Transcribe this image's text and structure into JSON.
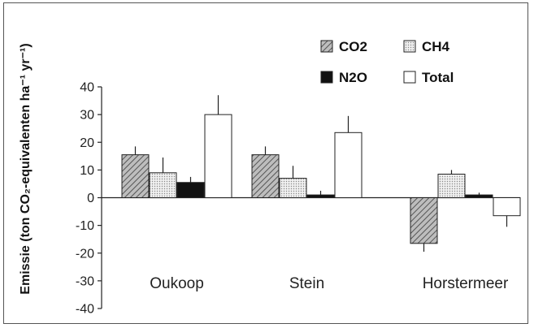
{
  "chart_data": {
    "type": "bar",
    "ylabel": "Emissie (ton CO₂-equivalenten ha⁻¹ yr⁻¹)",
    "categories": [
      "Oukoop",
      "Stein",
      "Horstermeer"
    ],
    "ylim": [
      -40,
      40
    ],
    "yticks": [
      "40",
      "30",
      "20",
      "10",
      "0",
      "-10",
      "-20",
      "-30",
      "-40"
    ],
    "series": [
      {
        "name": "CO2",
        "values": [
          15.5,
          15.5,
          -16.5
        ],
        "errors": [
          3,
          3,
          3
        ],
        "color": "#9a9a9a",
        "pattern": "hatch"
      },
      {
        "name": "CH4",
        "values": [
          9,
          7,
          8.5
        ],
        "errors": [
          5.5,
          4.5,
          1.5
        ],
        "color": "#d6d6d6",
        "pattern": "dots"
      },
      {
        "name": "N2O",
        "values": [
          5.5,
          1,
          1
        ],
        "errors": [
          2,
          1.5,
          0.8
        ],
        "color": "#111111",
        "pattern": "solid"
      },
      {
        "name": "Total",
        "values": [
          30,
          23.5,
          -6.5
        ],
        "errors": [
          7,
          6,
          4
        ],
        "color": "#ffffff",
        "pattern": "empty"
      }
    ],
    "legend": "top-right",
    "grid": false
  }
}
